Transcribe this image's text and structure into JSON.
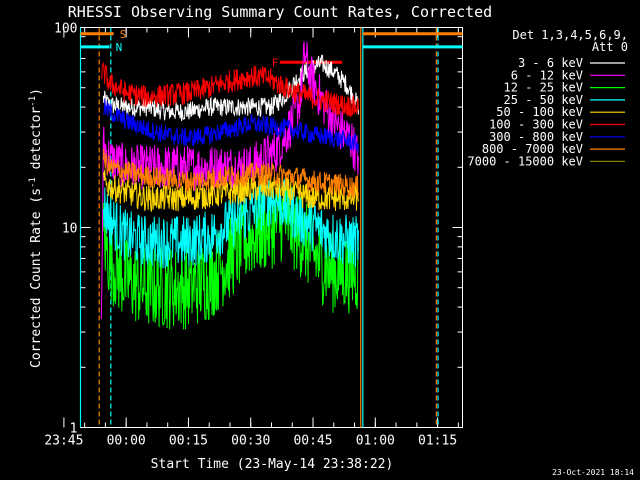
{
  "chart_data": {
    "type": "line",
    "title": "RHESSI Observing Summary Count Rates, Corrected",
    "xlabel": "Start Time (23-May-14 23:38:22)",
    "ylabel": "Corrected Count Rate (s",
    "ylabel_sup1": "-1",
    "ylabel_mid": " detector",
    "ylabel_sup2": "-1",
    "ylabel_end": ")",
    "y_scale": "log",
    "ylim": [
      1,
      100
    ],
    "y_ticks": [
      {
        "value": 1,
        "label": "1"
      },
      {
        "value": 10,
        "label": "10"
      },
      {
        "value": 100,
        "label": "100"
      }
    ],
    "x_range_minutes": [
      -11,
      81
    ],
    "x_ticks": [
      {
        "t": -15,
        "label": "23:45"
      },
      {
        "t": 0,
        "label": "00:00"
      },
      {
        "t": 15,
        "label": "00:15"
      },
      {
        "t": 30,
        "label": "00:30"
      },
      {
        "t": 45,
        "label": "00:45"
      },
      {
        "t": 60,
        "label": "01:00"
      },
      {
        "t": 75,
        "label": "01:15"
      }
    ],
    "legend": {
      "header_line1": "Det 1,3,4,5,6,9,",
      "header_line2": "Att 0",
      "placement": "right"
    },
    "series": [
      {
        "name": "3 - 6 keV",
        "color": "#ffffff",
        "points": [
          [
            -5.5,
            44
          ],
          [
            -4,
            41
          ],
          [
            0,
            40
          ],
          [
            5,
            40
          ],
          [
            10,
            38
          ],
          [
            15,
            38
          ],
          [
            20,
            40
          ],
          [
            25,
            40
          ],
          [
            30,
            40
          ],
          [
            35,
            40
          ],
          [
            38,
            45
          ],
          [
            41,
            55
          ],
          [
            44,
            62
          ],
          [
            47,
            66
          ],
          [
            50,
            60
          ],
          [
            53,
            52
          ],
          [
            55,
            44
          ],
          [
            56,
            40
          ]
        ]
      },
      {
        "name": "6 - 12 keV",
        "color": "#ff00ff",
        "points": [
          [
            -6,
            3
          ],
          [
            -5.5,
            26
          ],
          [
            -4,
            22
          ],
          [
            0,
            20
          ],
          [
            5,
            20
          ],
          [
            10,
            20
          ],
          [
            15,
            20
          ],
          [
            20,
            20
          ],
          [
            25,
            20
          ],
          [
            30,
            20
          ],
          [
            33,
            22
          ],
          [
            36,
            24
          ],
          [
            38,
            28
          ],
          [
            40,
            34
          ],
          [
            42,
            45
          ],
          [
            43,
            75
          ],
          [
            44,
            60
          ],
          [
            46,
            48
          ],
          [
            48,
            40
          ],
          [
            50,
            34
          ],
          [
            52,
            30
          ],
          [
            54,
            28
          ],
          [
            56,
            22
          ]
        ]
      },
      {
        "name": "12 - 25 keV",
        "color": "#00ff00",
        "points": [
          [
            -5.5,
            9
          ],
          [
            -4,
            7
          ],
          [
            -2,
            6
          ],
          [
            0,
            5.5
          ],
          [
            5,
            5
          ],
          [
            10,
            5
          ],
          [
            15,
            5
          ],
          [
            20,
            5.5
          ],
          [
            25,
            7
          ],
          [
            30,
            9
          ],
          [
            35,
            10
          ],
          [
            38,
            11
          ],
          [
            42,
            9
          ],
          [
            46,
            7
          ],
          [
            50,
            6
          ],
          [
            54,
            6
          ],
          [
            56,
            6
          ]
        ]
      },
      {
        "name": "25 - 50 keV",
        "color": "#00ffff",
        "points": [
          [
            -5.5,
            13
          ],
          [
            -4,
            11
          ],
          [
            -2,
            10
          ],
          [
            0,
            9
          ],
          [
            5,
            8.5
          ],
          [
            10,
            8.5
          ],
          [
            15,
            8.5
          ],
          [
            20,
            9
          ],
          [
            25,
            10.5
          ],
          [
            30,
            12
          ],
          [
            35,
            14
          ],
          [
            38,
            13
          ],
          [
            42,
            11
          ],
          [
            46,
            10
          ],
          [
            50,
            9
          ],
          [
            54,
            8.5
          ],
          [
            56,
            8.5
          ]
        ]
      },
      {
        "name": "50 - 100 keV",
        "color": "#ffd700",
        "points": [
          [
            -5.5,
            17
          ],
          [
            -4,
            16
          ],
          [
            0,
            15
          ],
          [
            5,
            14
          ],
          [
            10,
            14
          ],
          [
            15,
            14
          ],
          [
            20,
            14.5
          ],
          [
            25,
            15
          ],
          [
            30,
            15.5
          ],
          [
            35,
            16
          ],
          [
            40,
            15
          ],
          [
            45,
            14
          ],
          [
            50,
            14
          ],
          [
            54,
            14
          ],
          [
            56,
            14
          ]
        ]
      },
      {
        "name": "100 - 300 keV",
        "color": "#ff0000",
        "points": [
          [
            -6,
            60
          ],
          [
            -5,
            58
          ],
          [
            -4,
            52
          ],
          [
            -2,
            50
          ],
          [
            0,
            47
          ],
          [
            5,
            45
          ],
          [
            10,
            46
          ],
          [
            15,
            47
          ],
          [
            20,
            50
          ],
          [
            25,
            54
          ],
          [
            30,
            57
          ],
          [
            34,
            56
          ],
          [
            37,
            52
          ],
          [
            40,
            48
          ],
          [
            44,
            45
          ],
          [
            48,
            43
          ],
          [
            52,
            41
          ],
          [
            56,
            40
          ]
        ]
      },
      {
        "name": "300 - 800 keV",
        "color": "#0000ff",
        "points": [
          [
            -5.5,
            40
          ],
          [
            -4,
            38
          ],
          [
            -2,
            36
          ],
          [
            0,
            34
          ],
          [
            5,
            31
          ],
          [
            10,
            29
          ],
          [
            15,
            28
          ],
          [
            20,
            29
          ],
          [
            25,
            31
          ],
          [
            30,
            33
          ],
          [
            35,
            32
          ],
          [
            40,
            31
          ],
          [
            45,
            29
          ],
          [
            50,
            28
          ],
          [
            54,
            27
          ],
          [
            56,
            26
          ]
        ]
      },
      {
        "name": "800 - 7000 keV",
        "color": "#ff8000",
        "points": [
          [
            -5.5,
            22
          ],
          [
            -4,
            20
          ],
          [
            0,
            19
          ],
          [
            5,
            18
          ],
          [
            10,
            17.5
          ],
          [
            15,
            17
          ],
          [
            20,
            17.5
          ],
          [
            25,
            18
          ],
          [
            30,
            18.5
          ],
          [
            35,
            18.5
          ],
          [
            40,
            18
          ],
          [
            45,
            17
          ],
          [
            50,
            16.5
          ],
          [
            54,
            16
          ],
          [
            56,
            16
          ]
        ]
      },
      {
        "name": "7000 - 15000 keV",
        "color": "#808000",
        "points": []
      }
    ],
    "flags": [
      {
        "label": "S",
        "color": "#ff8000",
        "start_t": -11,
        "end_t": -3,
        "value": 93
      },
      {
        "label": "N",
        "color": "#00ffff",
        "start_t": -11,
        "end_t": -4,
        "value": 80
      },
      {
        "label": "F",
        "color": "#ff0000",
        "start_t": 37,
        "end_t": 52,
        "value": 67
      }
    ],
    "flag_bars_after_gap": [
      {
        "color": "#ff8000",
        "start_t": 57,
        "end_t": 81,
        "value": 93
      },
      {
        "color": "#00ffff",
        "start_t": 57,
        "end_t": 81,
        "value": 80
      }
    ],
    "vertical_markers": [
      {
        "t": -11,
        "color": "#00ffff",
        "style": "solid"
      },
      {
        "t": -6.5,
        "color": "#ff8000",
        "style": "dashed"
      },
      {
        "t": -3.7,
        "color": "#00ffff",
        "style": "dashed"
      },
      {
        "t": 56.5,
        "color": "#ff8000",
        "style": "solid"
      },
      {
        "t": 57,
        "color": "#00ffff",
        "style": "solid"
      },
      {
        "t": 74.7,
        "color": "#ff8000",
        "style": "dashed"
      },
      {
        "t": 75.1,
        "color": "#00ffff",
        "style": "dashed"
      }
    ],
    "footer_date": "23-Oct-2021 18:14",
    "grid": false
  }
}
